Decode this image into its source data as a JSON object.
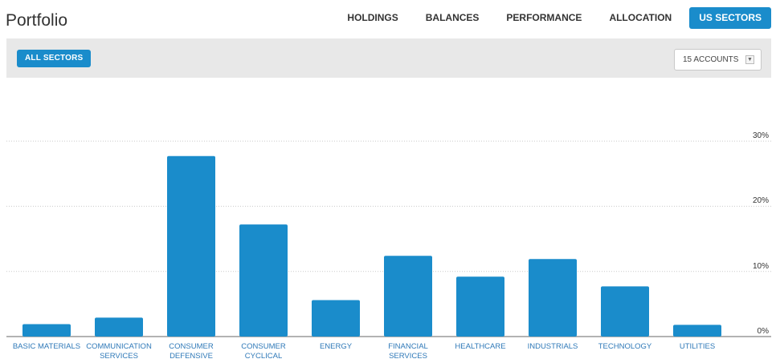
{
  "header": {
    "title": "Portfolio"
  },
  "nav": {
    "tabs": [
      {
        "label": "HOLDINGS",
        "active": false
      },
      {
        "label": "BALANCES",
        "active": false
      },
      {
        "label": "PERFORMANCE",
        "active": false
      },
      {
        "label": "ALLOCATION",
        "active": false
      },
      {
        "label": "US SECTORS",
        "active": true
      }
    ]
  },
  "toolbar": {
    "all_sectors_label": "ALL SECTORS",
    "accounts_selected": "15 ACCOUNTS"
  },
  "colors": {
    "accent": "#1a8ccb",
    "bar": "#1a8ccb",
    "toolbar_bg": "#e8e8e8",
    "label": "#2f79b8"
  },
  "chart_data": {
    "type": "bar",
    "categories": [
      "BASIC MATERIALS",
      "COMMUNICATION SERVICES",
      "CONSUMER DEFENSIVE",
      "CONSUMER CYCLICAL",
      "ENERGY",
      "FINANCIAL SERVICES",
      "HEALTHCARE",
      "INDUSTRIALS",
      "TECHNOLOGY",
      "UTILITIES"
    ],
    "category_lines": [
      [
        "BASIC MATERIALS"
      ],
      [
        "COMMUNICATION",
        "SERVICES"
      ],
      [
        "CONSUMER",
        "DEFENSIVE"
      ],
      [
        "CONSUMER",
        "CYCLICAL"
      ],
      [
        "ENERGY"
      ],
      [
        "FINANCIAL",
        "SERVICES"
      ],
      [
        "HEALTHCARE"
      ],
      [
        "INDUSTRIALS"
      ],
      [
        "TECHNOLOGY"
      ],
      [
        "UTILITIES"
      ]
    ],
    "values": [
      1.9,
      2.9,
      27.7,
      17.2,
      5.6,
      12.4,
      9.2,
      11.9,
      7.7,
      1.8
    ],
    "yticks": [
      0,
      10,
      20,
      30
    ],
    "ytick_labels": [
      "0%",
      "10%",
      "20%",
      "30%"
    ],
    "ylim": [
      0,
      36
    ],
    "title": "",
    "xlabel": "",
    "ylabel": "",
    "grid": true
  }
}
